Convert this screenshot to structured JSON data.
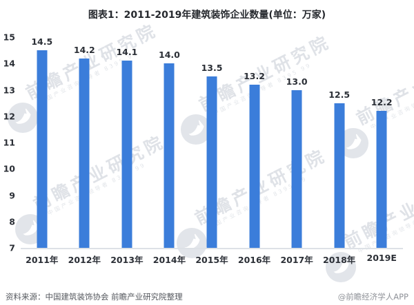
{
  "title": "图表1：2011-2019年建筑装饰企业数量(单位：万家)",
  "chart_data": {
    "type": "bar",
    "title": "图表1：2011-2019年建筑装饰企业数量(单位：万家)",
    "unit": "万家",
    "categories": [
      "2011年",
      "2012年",
      "2013年",
      "2014年",
      "2015年",
      "2016年",
      "2017年",
      "2018年",
      "2019E"
    ],
    "values": [
      14.5,
      14.2,
      14.1,
      14.0,
      13.5,
      13.2,
      13.0,
      12.5,
      12.2
    ],
    "value_label_decimals": 1,
    "xlabel": "",
    "ylabel": "",
    "ylim": [
      7,
      15
    ],
    "yticks": [
      15,
      14,
      13,
      12,
      11,
      10,
      9,
      8,
      7
    ],
    "grid": false,
    "legend": "none",
    "bar_color": "#3b7dda"
  },
  "watermark": {
    "text": "前瞻产业研究院",
    "subtext": "中国产业咨询领导者 8395 99",
    "logo": "qianzhan-bird-logo",
    "text_color": "#dfe2e7",
    "logo_color": "#e2e5ea"
  },
  "footer": {
    "source": "资料来源：中国建筑装饰协会  前瞻产业研究院整理",
    "credit": "@前瞻经济学人APP"
  }
}
